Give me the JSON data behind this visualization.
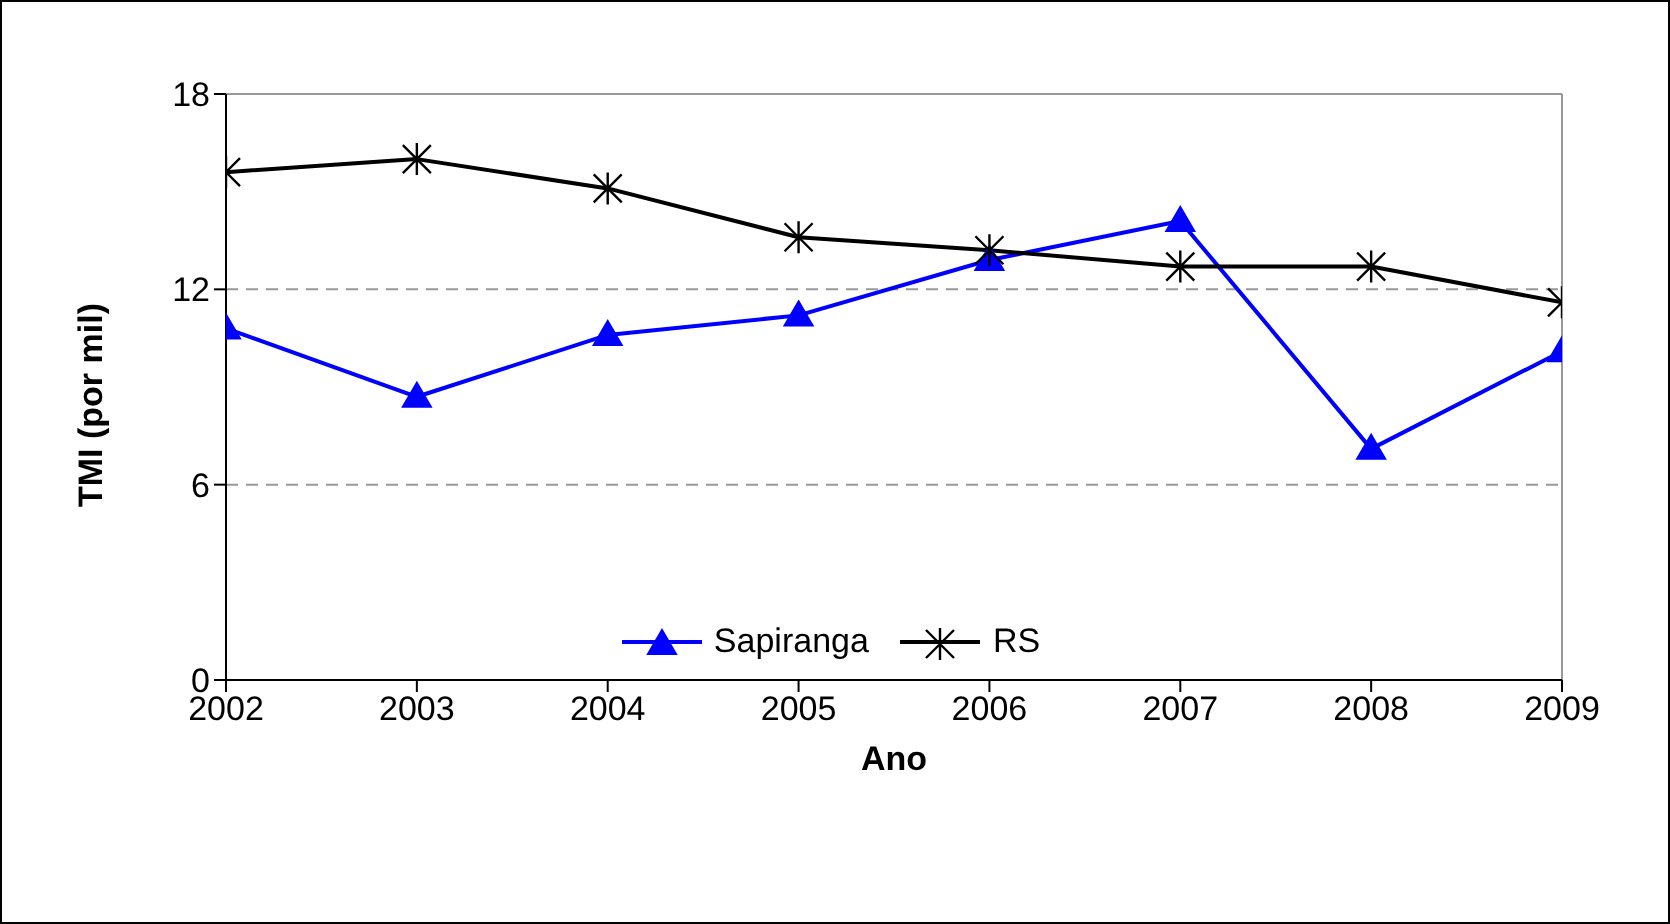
{
  "chart_data": {
    "type": "line",
    "xlabel": "Ano",
    "ylabel": "TMI (por mil)",
    "x": [
      2002,
      2003,
      2004,
      2005,
      2006,
      2007,
      2008,
      2009
    ],
    "series": [
      {
        "name": "Sapiranga",
        "color": "#0000ff",
        "marker": "triangle",
        "values": [
          10.8,
          8.7,
          10.6,
          11.2,
          12.9,
          14.1,
          7.1,
          10.1
        ]
      },
      {
        "name": "RS",
        "color": "#000000",
        "marker": "cross",
        "values": [
          15.6,
          16.0,
          15.1,
          13.6,
          13.2,
          12.7,
          12.7,
          11.6
        ]
      }
    ],
    "xlim": [
      2002,
      2009
    ],
    "xticks": [
      2002,
      2003,
      2004,
      2005,
      2006,
      2007,
      2008,
      2009
    ],
    "ylim": [
      0,
      18
    ],
    "yticks": [
      0,
      6,
      12,
      18
    ],
    "grid": "y",
    "legend": "bottom",
    "line_style": "solid"
  }
}
